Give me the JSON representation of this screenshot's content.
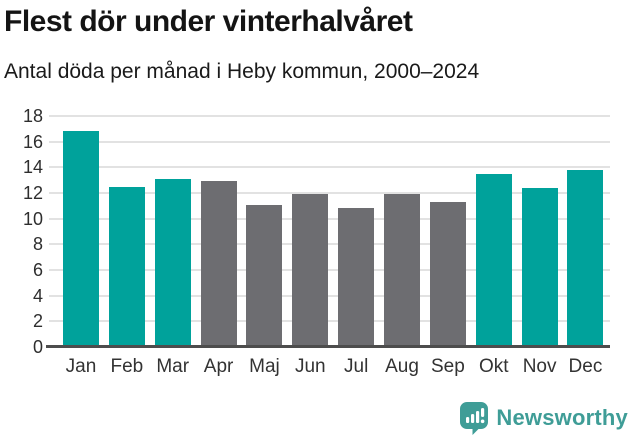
{
  "header": {
    "title": "Flest dör under vinterhalvåret",
    "subtitle": "Antal döda per månad i Heby kommun, 2000–2024"
  },
  "chart_data": {
    "type": "bar",
    "title": "Flest dör under vinterhalvåret",
    "subtitle": "Antal döda per månad i Heby kommun, 2000–2024",
    "categories": [
      "Jan",
      "Feb",
      "Mar",
      "Apr",
      "Maj",
      "Jun",
      "Jul",
      "Aug",
      "Sep",
      "Okt",
      "Nov",
      "Dec"
    ],
    "values": [
      16.8,
      12.5,
      13.1,
      12.9,
      11.1,
      11.9,
      10.8,
      11.9,
      11.3,
      13.5,
      12.4,
      13.8
    ],
    "bar_color_keys": [
      "highlight",
      "highlight",
      "highlight",
      "muted",
      "muted",
      "muted",
      "muted",
      "muted",
      "muted",
      "highlight",
      "highlight",
      "highlight"
    ],
    "xlabel": "",
    "ylabel": "",
    "ylim": [
      0,
      18
    ],
    "yticks": [
      0,
      2,
      4,
      6,
      8,
      10,
      12,
      14,
      16,
      18
    ],
    "grid": true,
    "legend": false,
    "colors": {
      "highlight": "#00a29b",
      "muted": "#6d6d71",
      "gridline": "#e2e2e2",
      "axis_line": "#4d4d4d"
    }
  },
  "footer": {
    "brand": "Newsworthy",
    "brand_color": "#3f9d97",
    "logo_icon": "speech-bubble-bar-chart-exclamation"
  }
}
